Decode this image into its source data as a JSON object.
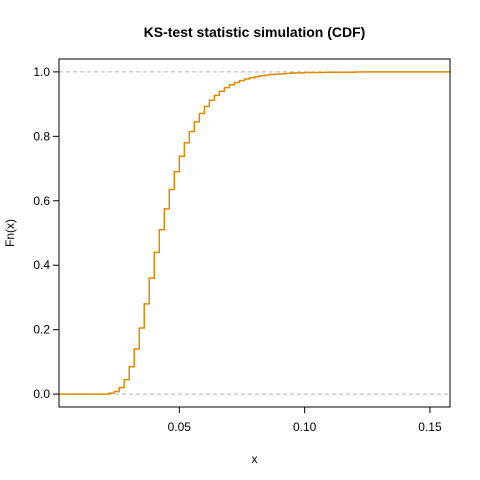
{
  "chart_data": {
    "type": "line",
    "title": "KS-test statistic simulation (CDF)",
    "xlabel": "x",
    "ylabel": "Fn(x)",
    "xlim": [
      0.002,
      0.158
    ],
    "ylim": [
      -0.04,
      1.04
    ],
    "xticks": [
      0.05,
      0.1,
      0.15
    ],
    "xtick_labels": [
      "0.05",
      "0.10",
      "0.15"
    ],
    "yticks": [
      0.0,
      0.2,
      0.4,
      0.6,
      0.8,
      1.0
    ],
    "ytick_labels": [
      "0.0",
      "0.2",
      "0.4",
      "0.6",
      "0.8",
      "1.0"
    ],
    "reference_lines": [
      0,
      1
    ],
    "grid": false,
    "legend": "none",
    "series": [
      {
        "color": "#e08a00",
        "step": true,
        "x": [
          0.002,
          0.02,
          0.022,
          0.024,
          0.026,
          0.028,
          0.03,
          0.032,
          0.034,
          0.036,
          0.038,
          0.04,
          0.042,
          0.044,
          0.046,
          0.048,
          0.05,
          0.052,
          0.054,
          0.056,
          0.058,
          0.06,
          0.062,
          0.064,
          0.066,
          0.068,
          0.07,
          0.072,
          0.074,
          0.076,
          0.078,
          0.08,
          0.082,
          0.084,
          0.086,
          0.088,
          0.09,
          0.092,
          0.094,
          0.096,
          0.098,
          0.1,
          0.104,
          0.108,
          0.112,
          0.116,
          0.12,
          0.124,
          0.158
        ],
        "y": [
          0.0,
          0.0,
          0.003,
          0.008,
          0.02,
          0.045,
          0.085,
          0.14,
          0.205,
          0.28,
          0.36,
          0.44,
          0.51,
          0.575,
          0.635,
          0.69,
          0.738,
          0.78,
          0.815,
          0.845,
          0.871,
          0.893,
          0.912,
          0.927,
          0.94,
          0.951,
          0.96,
          0.967,
          0.973,
          0.978,
          0.982,
          0.985,
          0.988,
          0.99,
          0.992,
          0.993,
          0.994,
          0.995,
          0.996,
          0.997,
          0.997,
          0.998,
          0.998,
          0.999,
          0.999,
          0.999,
          0.9995,
          1.0,
          1.0
        ]
      }
    ]
  },
  "colors": {
    "line": "#e08a00",
    "reference_line": "#b3b3b3",
    "axis": "#000000",
    "background": "#ffffff"
  }
}
